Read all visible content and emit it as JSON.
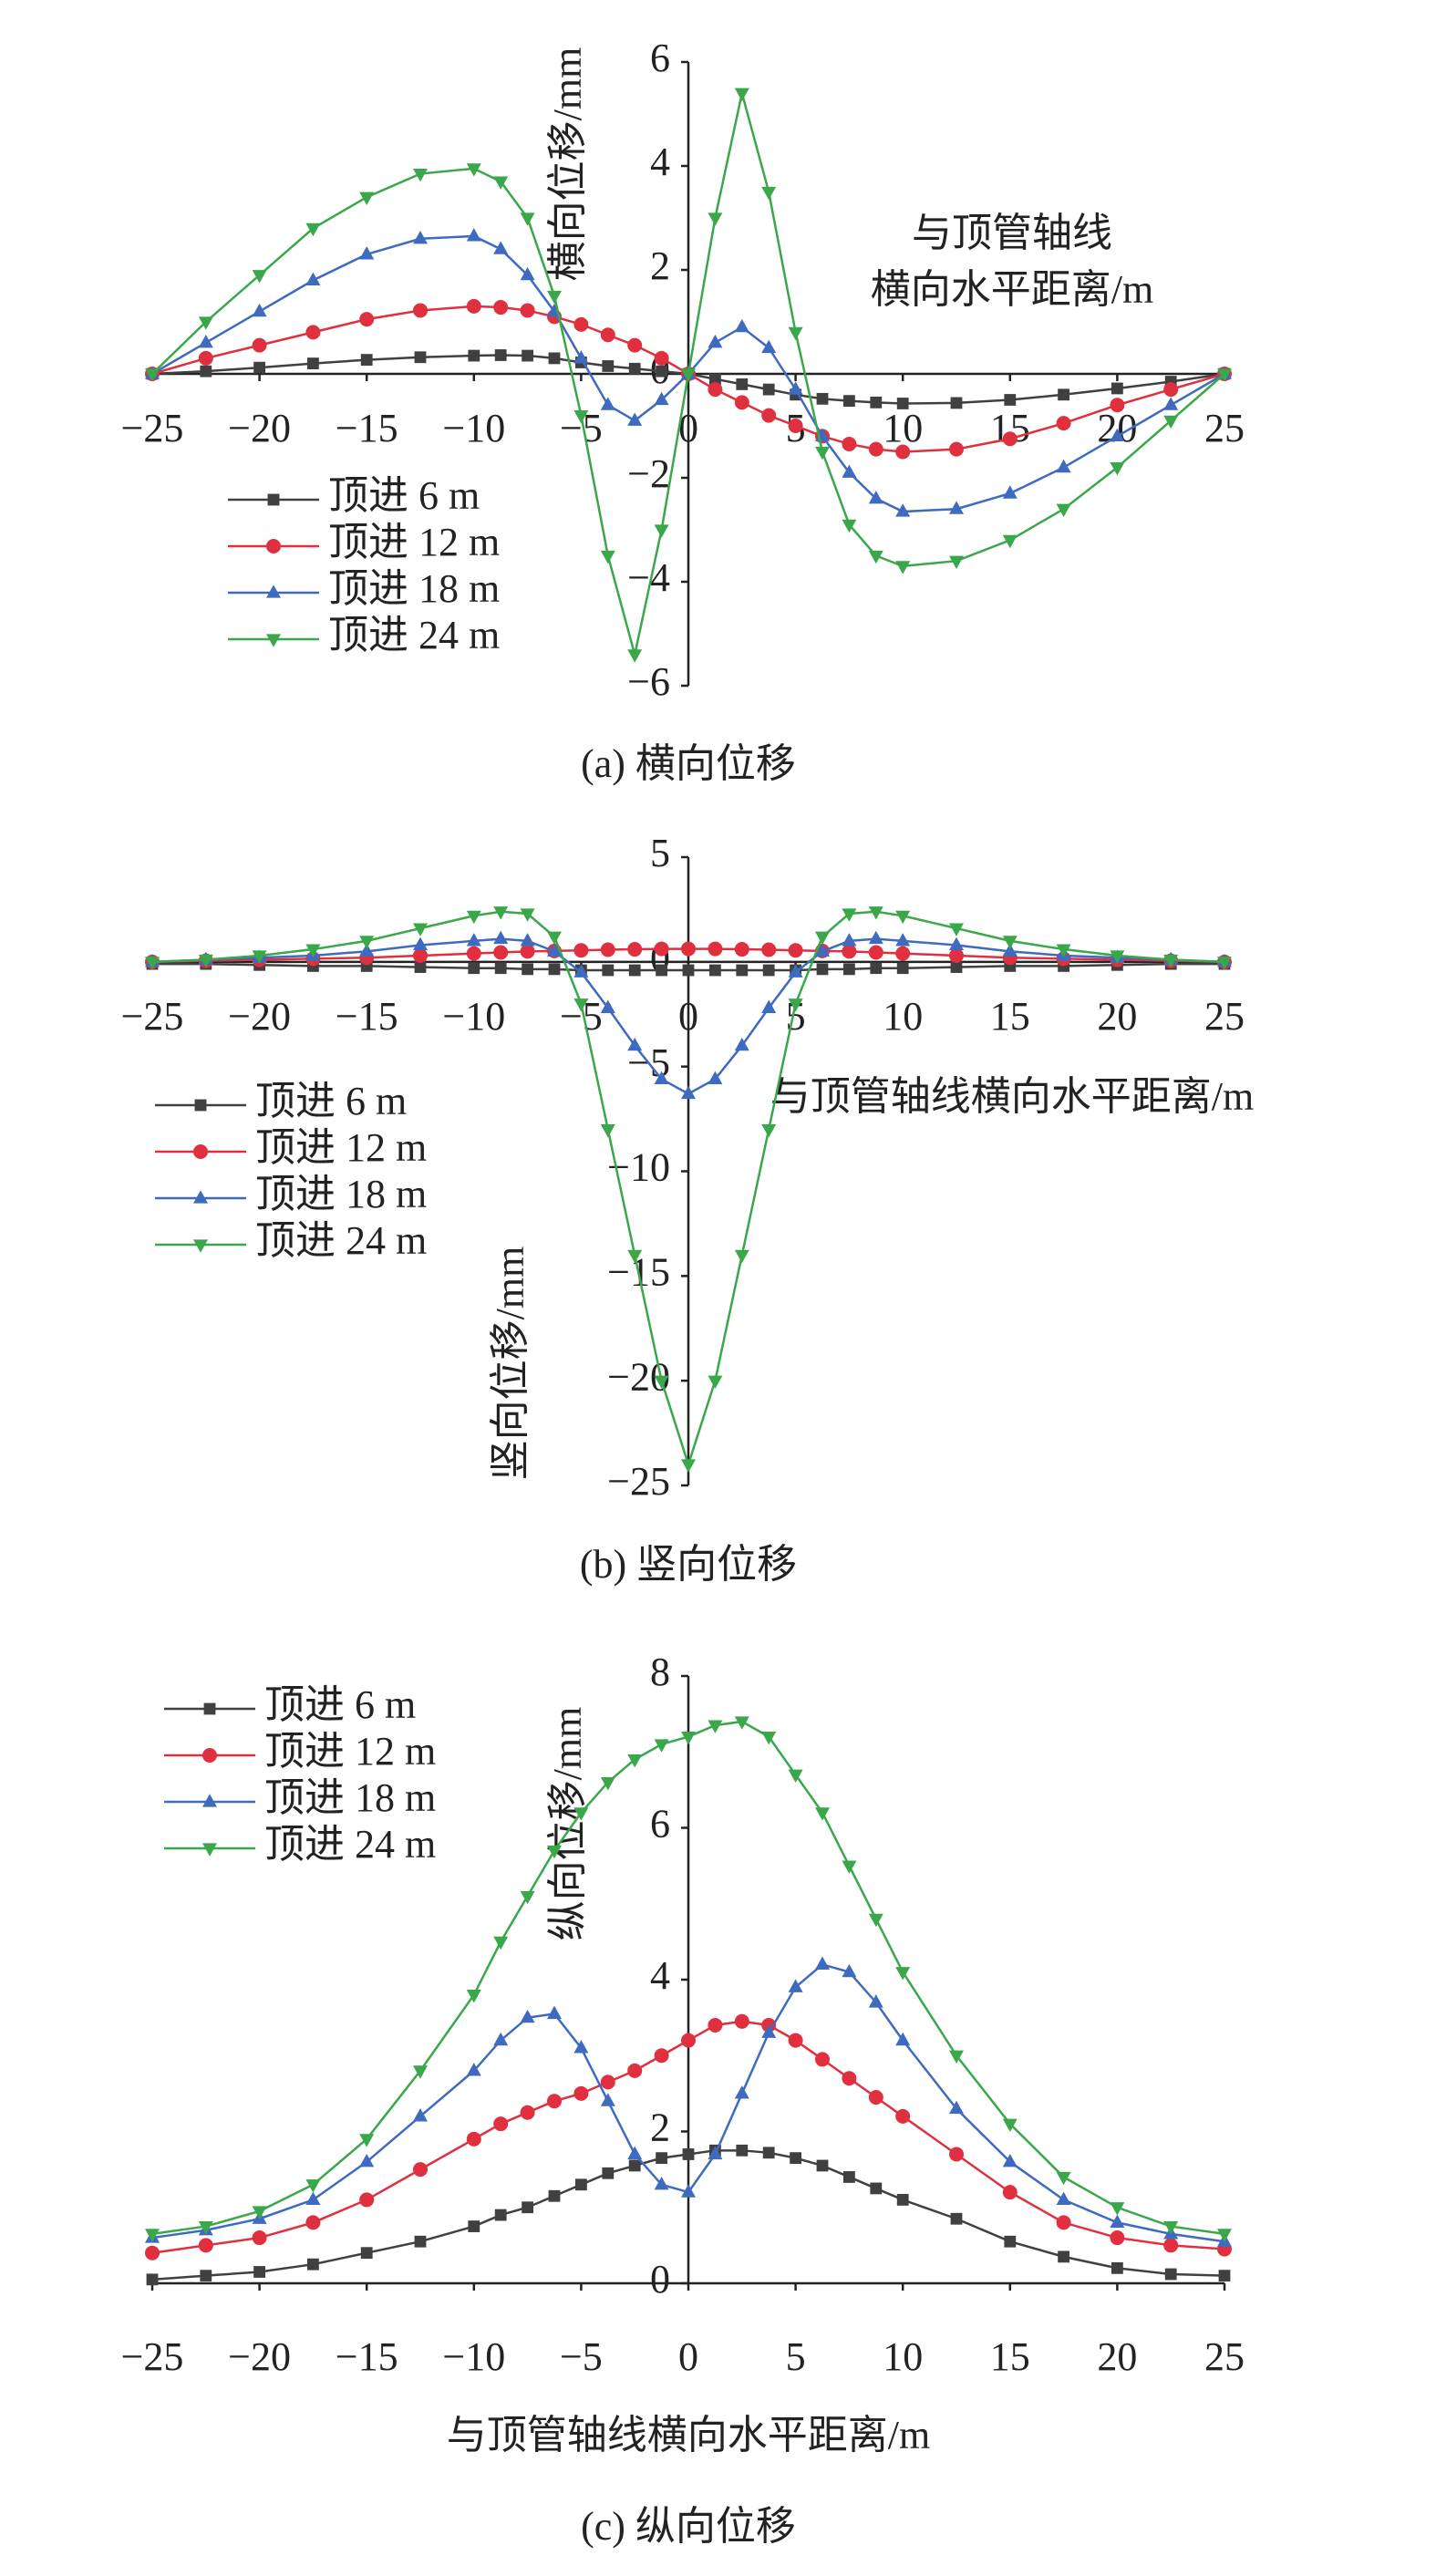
{
  "chart_data": [
    {
      "type": "line",
      "title": "(a) 横向位移",
      "x_label": [
        "与顶管轴线",
        "横向水平距离/m"
      ],
      "y_label": "横向位移/mm",
      "x": [
        -25,
        -22.5,
        -20,
        -17.5,
        -15,
        -12.5,
        -10,
        -8.75,
        -7.5,
        -6.25,
        -5,
        -3.75,
        -2.5,
        -1.25,
        0,
        1.25,
        2.5,
        3.75,
        5,
        6.25,
        7.5,
        8.75,
        10,
        12.5,
        15,
        17.5,
        20,
        22.5,
        25
      ],
      "xlim": [
        -25,
        25
      ],
      "ylim": [
        -6,
        6
      ],
      "xticks": [
        {
          "value": -25,
          "label": "−25"
        },
        {
          "value": -20,
          "label": "−20"
        },
        {
          "value": -15,
          "label": "−15"
        },
        {
          "value": -10,
          "label": "−10"
        },
        {
          "value": -5,
          "label": "−5"
        },
        0,
        5,
        10,
        15,
        20,
        25
      ],
      "yticks": [
        {
          "value": -6,
          "label": "−6"
        },
        {
          "value": -4,
          "label": "−4"
        },
        {
          "value": -2,
          "label": "−2"
        },
        0,
        2,
        4,
        6
      ],
      "series": [
        {
          "name": "顶进 6 m",
          "color": "#404040",
          "marker": "square",
          "values": [
            0,
            0.05,
            0.12,
            0.2,
            0.27,
            0.32,
            0.35,
            0.36,
            0.35,
            0.3,
            0.22,
            0.15,
            0.1,
            0.05,
            0,
            -0.1,
            -0.2,
            -0.3,
            -0.4,
            -0.48,
            -0.52,
            -0.55,
            -0.57,
            -0.56,
            -0.5,
            -0.4,
            -0.28,
            -0.15,
            0
          ]
        },
        {
          "name": "顶进 12 m",
          "color": "#e0303f",
          "marker": "circle",
          "values": [
            0,
            0.3,
            0.55,
            0.8,
            1.05,
            1.22,
            1.3,
            1.28,
            1.22,
            1.1,
            0.95,
            0.75,
            0.55,
            0.3,
            0,
            -0.3,
            -0.55,
            -0.8,
            -1.0,
            -1.2,
            -1.35,
            -1.45,
            -1.5,
            -1.45,
            -1.25,
            -0.95,
            -0.6,
            -0.3,
            0
          ]
        },
        {
          "name": "顶进 18 m",
          "color": "#3e6bbf",
          "marker": "triangle-up",
          "values": [
            0,
            0.6,
            1.2,
            1.8,
            2.3,
            2.6,
            2.65,
            2.4,
            1.9,
            1.2,
            0.3,
            -0.6,
            -0.9,
            -0.5,
            0,
            0.6,
            0.9,
            0.5,
            -0.3,
            -1.2,
            -1.9,
            -2.4,
            -2.65,
            -2.6,
            -2.3,
            -1.8,
            -1.2,
            -0.6,
            0
          ]
        },
        {
          "name": "顶进 24 m",
          "color": "#3aa84a",
          "marker": "triangle-down",
          "values": [
            0,
            1.0,
            1.9,
            2.8,
            3.4,
            3.85,
            3.95,
            3.7,
            3.0,
            1.5,
            -0.8,
            -3.5,
            -5.4,
            -3.0,
            0,
            3.0,
            5.4,
            3.5,
            0.8,
            -1.5,
            -2.9,
            -3.5,
            -3.7,
            -3.6,
            -3.2,
            -2.6,
            -1.8,
            -0.9,
            0
          ]
        }
      ]
    },
    {
      "type": "line",
      "title": "(b) 竖向位移",
      "x_label": [
        "与顶管轴线横向水平距离/m"
      ],
      "y_label": "竖向位移/mm",
      "x": [
        -25,
        -22.5,
        -20,
        -17.5,
        -15,
        -12.5,
        -10,
        -8.75,
        -7.5,
        -6.25,
        -5,
        -3.75,
        -2.5,
        -1.25,
        0,
        1.25,
        2.5,
        3.75,
        5,
        6.25,
        7.5,
        8.75,
        10,
        12.5,
        15,
        17.5,
        20,
        22.5,
        25
      ],
      "xlim": [
        -25,
        25
      ],
      "ylim": [
        -25,
        5
      ],
      "xticks": [
        {
          "value": -25,
          "label": "−25"
        },
        {
          "value": -20,
          "label": "−20"
        },
        {
          "value": -15,
          "label": "−15"
        },
        {
          "value": -10,
          "label": "−10"
        },
        {
          "value": -5,
          "label": "−5"
        },
        0,
        5,
        10,
        15,
        20,
        25
      ],
      "yticks": [
        {
          "value": -25,
          "label": "−25"
        },
        {
          "value": -20,
          "label": "−20"
        },
        {
          "value": -15,
          "label": "−15"
        },
        {
          "value": -10,
          "label": "−10"
        },
        {
          "value": -5,
          "label": "−5"
        },
        0,
        5
      ],
      "series": [
        {
          "name": "顶进 6 m",
          "color": "#404040",
          "marker": "square",
          "values": [
            -0.1,
            -0.1,
            -0.15,
            -0.2,
            -0.2,
            -0.25,
            -0.3,
            -0.3,
            -0.35,
            -0.35,
            -0.4,
            -0.4,
            -0.4,
            -0.4,
            -0.4,
            -0.4,
            -0.4,
            -0.4,
            -0.4,
            -0.35,
            -0.35,
            -0.3,
            -0.3,
            -0.25,
            -0.2,
            -0.2,
            -0.15,
            -0.1,
            -0.1
          ]
        },
        {
          "name": "顶进 12 m",
          "color": "#e0303f",
          "marker": "circle",
          "values": [
            0,
            0.05,
            0.1,
            0.15,
            0.2,
            0.3,
            0.4,
            0.45,
            0.5,
            0.52,
            0.55,
            0.58,
            0.6,
            0.62,
            0.62,
            0.62,
            0.6,
            0.58,
            0.55,
            0.52,
            0.5,
            0.45,
            0.4,
            0.3,
            0.2,
            0.15,
            0.1,
            0.05,
            0
          ]
        },
        {
          "name": "顶进 18 m",
          "color": "#3e6bbf",
          "marker": "triangle-up",
          "values": [
            0,
            0.1,
            0.2,
            0.3,
            0.5,
            0.8,
            1.0,
            1.1,
            1.0,
            0.5,
            -0.5,
            -2.2,
            -4.0,
            -5.6,
            -6.3,
            -5.6,
            -4.0,
            -2.2,
            -0.5,
            0.5,
            1.0,
            1.1,
            1.0,
            0.8,
            0.5,
            0.3,
            0.2,
            0.1,
            0
          ]
        },
        {
          "name": "顶进 24 m",
          "color": "#3aa84a",
          "marker": "triangle-down",
          "values": [
            0,
            0.1,
            0.3,
            0.6,
            1.0,
            1.6,
            2.2,
            2.4,
            2.3,
            1.2,
            -2.0,
            -8.0,
            -14,
            -20,
            -24,
            -20,
            -14,
            -8.0,
            -2.0,
            1.2,
            2.3,
            2.4,
            2.2,
            1.6,
            1.0,
            0.6,
            0.3,
            0.1,
            0
          ]
        }
      ]
    },
    {
      "type": "line",
      "title": "(c) 纵向位移",
      "x_label": [
        "与顶管轴线横向水平距离/m"
      ],
      "y_label": "纵向位移/mm",
      "x": [
        -25,
        -22.5,
        -20,
        -17.5,
        -15,
        -12.5,
        -10,
        -8.75,
        -7.5,
        -6.25,
        -5,
        -3.75,
        -2.5,
        -1.25,
        0,
        1.25,
        2.5,
        3.75,
        5,
        6.25,
        7.5,
        8.75,
        10,
        12.5,
        15,
        17.5,
        20,
        22.5,
        25
      ],
      "xlim": [
        -25,
        25
      ],
      "ylim": [
        0,
        8
      ],
      "xticks": [
        {
          "value": -25,
          "label": "−25"
        },
        {
          "value": -20,
          "label": "−20"
        },
        {
          "value": -15,
          "label": "−15"
        },
        {
          "value": -10,
          "label": "−10"
        },
        {
          "value": -5,
          "label": "−5"
        },
        0,
        5,
        10,
        15,
        20,
        25
      ],
      "yticks": [
        0,
        2,
        4,
        6,
        8
      ],
      "series": [
        {
          "name": "顶进 6 m",
          "color": "#404040",
          "marker": "square",
          "values": [
            0.05,
            0.1,
            0.15,
            0.25,
            0.4,
            0.55,
            0.75,
            0.9,
            1.0,
            1.15,
            1.3,
            1.45,
            1.55,
            1.65,
            1.7,
            1.75,
            1.75,
            1.72,
            1.65,
            1.55,
            1.4,
            1.25,
            1.1,
            0.85,
            0.55,
            0.35,
            0.2,
            0.12,
            0.1
          ]
        },
        {
          "name": "顶进 12 m",
          "color": "#e0303f",
          "marker": "circle",
          "values": [
            0.4,
            0.5,
            0.6,
            0.8,
            1.1,
            1.5,
            1.9,
            2.1,
            2.25,
            2.4,
            2.5,
            2.65,
            2.8,
            3.0,
            3.2,
            3.4,
            3.45,
            3.4,
            3.2,
            2.95,
            2.7,
            2.45,
            2.2,
            1.7,
            1.2,
            0.8,
            0.6,
            0.5,
            0.45
          ]
        },
        {
          "name": "顶进 18 m",
          "color": "#3e6bbf",
          "marker": "triangle-up",
          "values": [
            0.6,
            0.7,
            0.85,
            1.1,
            1.6,
            2.2,
            2.8,
            3.2,
            3.5,
            3.55,
            3.1,
            2.4,
            1.7,
            1.3,
            1.2,
            1.7,
            2.5,
            3.3,
            3.9,
            4.2,
            4.1,
            3.7,
            3.2,
            2.3,
            1.6,
            1.1,
            0.8,
            0.65,
            0.55
          ]
        },
        {
          "name": "顶进 24 m",
          "color": "#3aa84a",
          "marker": "triangle-down",
          "values": [
            0.65,
            0.75,
            0.95,
            1.3,
            1.9,
            2.8,
            3.8,
            4.5,
            5.1,
            5.7,
            6.2,
            6.6,
            6.9,
            7.1,
            7.2,
            7.35,
            7.4,
            7.2,
            6.7,
            6.2,
            5.5,
            4.8,
            4.1,
            3.0,
            2.1,
            1.4,
            1.0,
            0.75,
            0.65
          ]
        }
      ]
    }
  ]
}
